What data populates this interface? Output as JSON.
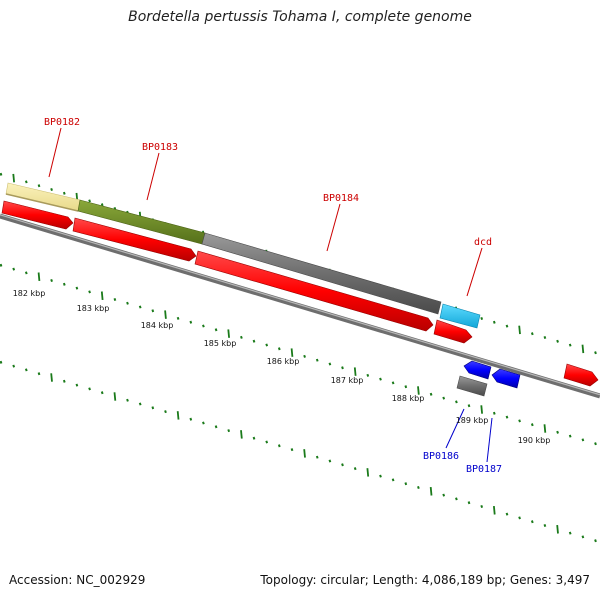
{
  "title": "Bordetella pertussis Tohama I, complete genome",
  "footer": {
    "accession": "Accession: NC_002929",
    "summary": "Topology: circular; Length: 4,086,189 bp; Genes: 3,497"
  },
  "colors": {
    "cds_forward": "#ff0000",
    "cds_reverse": "#0000ff",
    "backbone": "#808080",
    "label_forward": "#cc0000",
    "label_reverse": "#0000cc",
    "tick": "#1a7a1a"
  },
  "scale_labels": [
    "182 kbp",
    "183 kbp",
    "184 kbp",
    "185 kbp",
    "186 kbp",
    "187 kbp",
    "188 kbp",
    "189 kbp",
    "190 kbp"
  ],
  "genes": [
    {
      "label": "BP0182",
      "strand": "forward",
      "color": "#cc0000"
    },
    {
      "label": "BP0183",
      "strand": "forward",
      "color": "#cc0000"
    },
    {
      "label": "BP0184",
      "strand": "forward",
      "color": "#cc0000"
    },
    {
      "label": "dcd",
      "strand": "forward",
      "color": "#cc0000"
    },
    {
      "label": "BP0186",
      "strand": "reverse",
      "color": "#0000cc"
    },
    {
      "label": "BP0187",
      "strand": "reverse",
      "color": "#0000cc"
    }
  ]
}
